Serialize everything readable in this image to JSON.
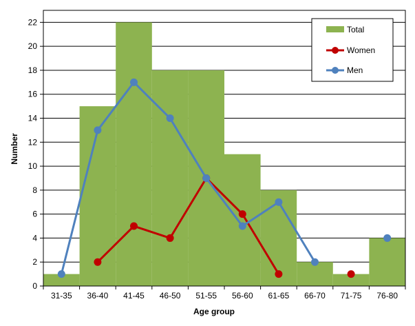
{
  "chart_data": {
    "type": "bar",
    "categories": [
      "31-35",
      "36-40",
      "41-45",
      "46-50",
      "51-55",
      "56-60",
      "61-65",
      "66-70",
      "71-75",
      "76-80"
    ],
    "xlabel": "Age group",
    "ylabel": "Number",
    "ylim": [
      0,
      23
    ],
    "yticks": [
      0,
      2,
      4,
      6,
      8,
      10,
      12,
      14,
      16,
      18,
      20,
      22
    ],
    "grid": true,
    "legend_position": "top-right",
    "series": [
      {
        "name": "Total",
        "kind": "bar",
        "color": "#8DB350",
        "values": [
          1,
          15,
          22,
          18,
          18,
          11,
          8,
          2,
          1,
          4
        ]
      },
      {
        "name": "Women",
        "kind": "line",
        "color": "#C00000",
        "values": [
          null,
          2,
          5,
          4,
          9,
          6,
          1,
          null,
          1,
          null
        ]
      },
      {
        "name": "Men",
        "kind": "line",
        "color": "#4F81BD",
        "values": [
          1,
          13,
          17,
          14,
          9,
          5,
          7,
          2,
          null,
          4
        ]
      }
    ]
  }
}
